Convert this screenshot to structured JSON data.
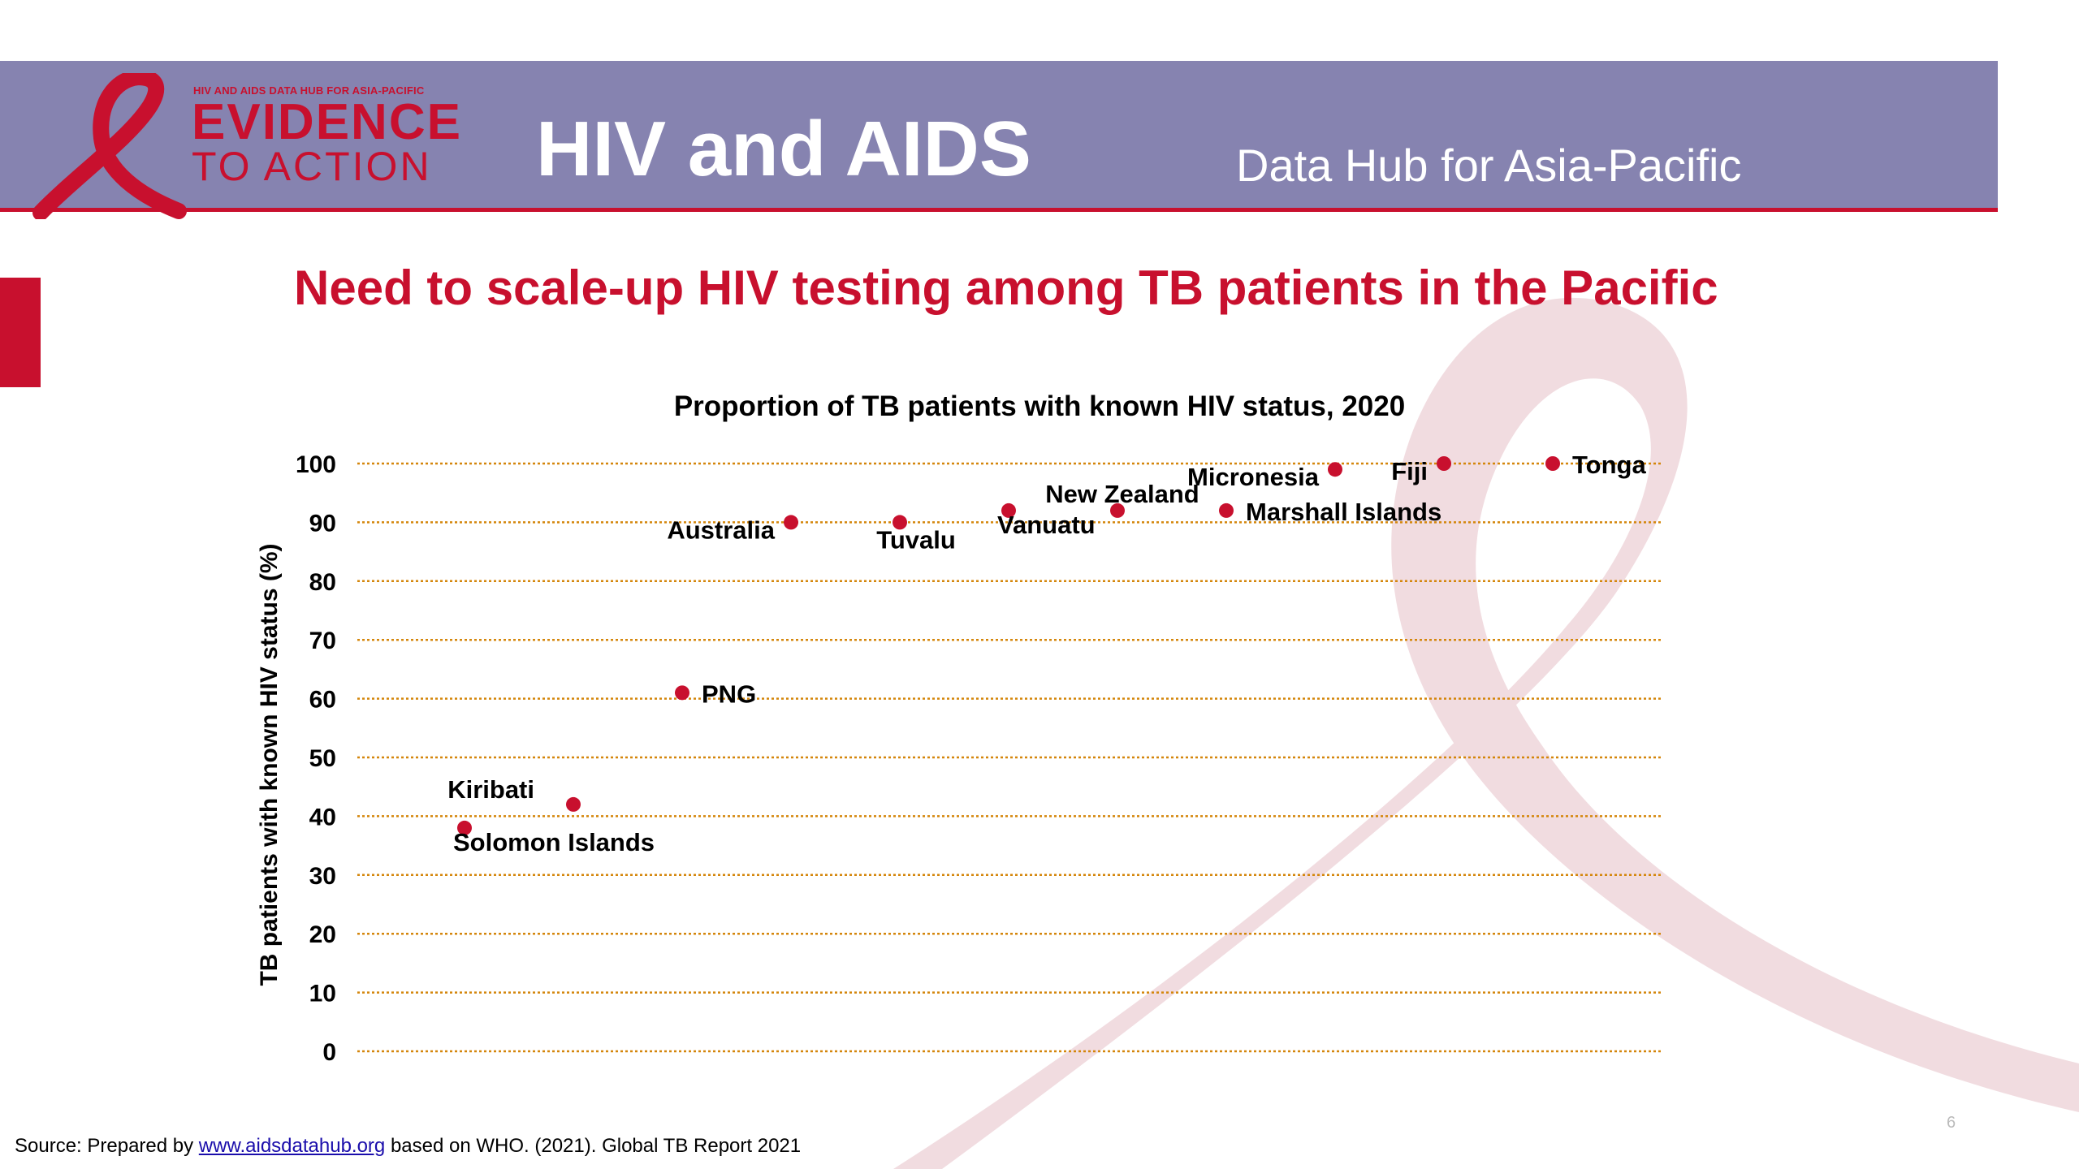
{
  "header": {
    "logo_small": "HIV AND AIDS DATA HUB FOR ASIA-PACIFIC",
    "logo_line1": "EVIDENCE",
    "logo_line2": "TO ACTION",
    "title": "HIV and AIDS",
    "subtitle": "Data Hub for Asia-Pacific"
  },
  "slide": {
    "title": "Need to scale-up HIV testing among TB patients in the Pacific",
    "page_number": "6"
  },
  "source": {
    "prefix": "Source: Prepared by",
    "link": "www.aidsdatahub.org",
    "suffix": "based on WHO. (2021). Global TB Report 2021"
  },
  "colors": {
    "header_band": "#8683b0",
    "accent_red": "#c8102e",
    "gridline": "#d4860b",
    "ribbon_pink": "#e8c4cc"
  },
  "chart_data": {
    "type": "scatter",
    "title": "Proportion of TB patients with known HIV status, 2020",
    "xlabel": "",
    "ylabel": "TB patients with known HIV status (%)",
    "ylim": [
      0,
      100
    ],
    "yticks": [
      0,
      10,
      20,
      30,
      40,
      50,
      60,
      70,
      80,
      90,
      100
    ],
    "grid": true,
    "points": [
      {
        "label": "Solomon Islands",
        "x": 1,
        "y": 38,
        "label_pos": "below-right"
      },
      {
        "label": "Kiribati",
        "x": 2,
        "y": 42,
        "label_pos": "left-above"
      },
      {
        "label": "PNG",
        "x": 3,
        "y": 61,
        "label_pos": "right"
      },
      {
        "label": "Australia",
        "x": 4,
        "y": 90,
        "label_pos": "left"
      },
      {
        "label": "Tuvalu",
        "x": 5,
        "y": 90,
        "label_pos": "below"
      },
      {
        "label": "Vanuatu",
        "x": 6,
        "y": 92,
        "label_pos": "below-right"
      },
      {
        "label": "New Zealand",
        "x": 7,
        "y": 92,
        "label_pos": "above"
      },
      {
        "label": "Marshall Islands",
        "x": 8,
        "y": 92,
        "label_pos": "right"
      },
      {
        "label": "Micronesia",
        "x": 9,
        "y": 99,
        "label_pos": "left"
      },
      {
        "label": "Fiji",
        "x": 10,
        "y": 100,
        "label_pos": "left"
      },
      {
        "label": "Tonga",
        "x": 11,
        "y": 100,
        "label_pos": "right"
      }
    ]
  }
}
